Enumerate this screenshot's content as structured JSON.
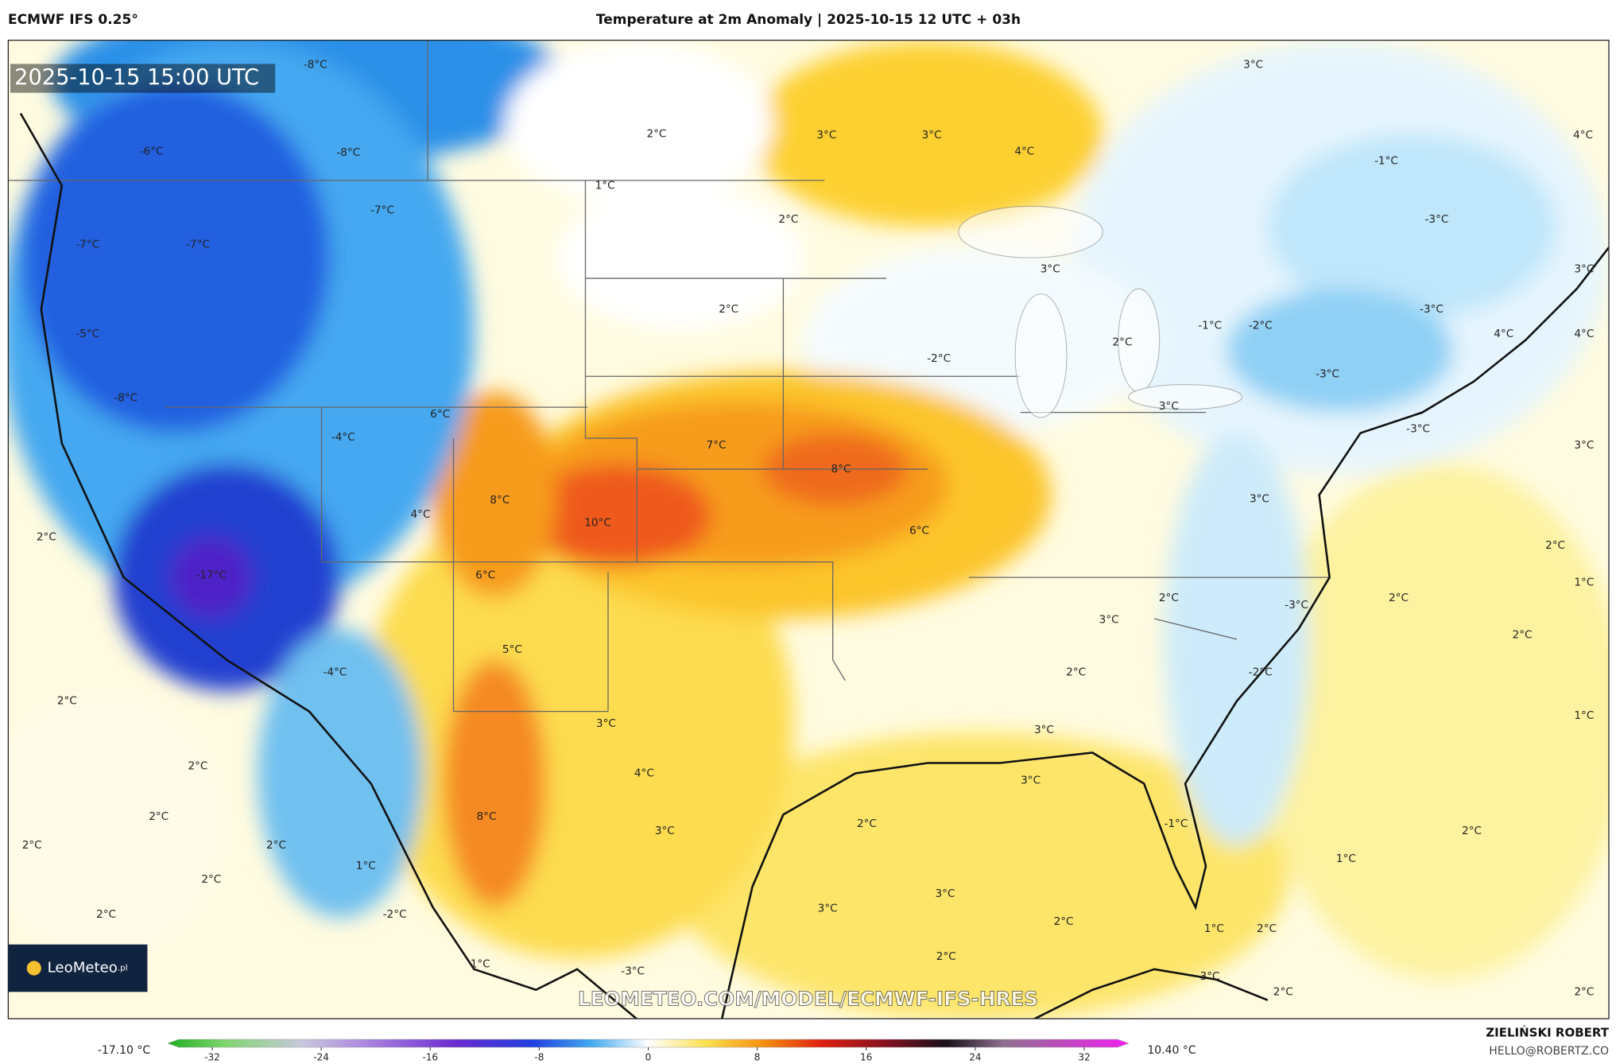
{
  "header": {
    "model": "ECMWF IFS 0.25°",
    "title": "Temperature at 2m Anomaly | 2025-10-15 12 UTC + 03h"
  },
  "map": {
    "timestamp": "2025-10-15 15:00 UTC",
    "watermark": "LEOMETEO.COM/MODEL/ECMWF-IFS-HRES",
    "labels": [
      "-8°C",
      "-6°C",
      "-8°C",
      "2°C",
      "3°C",
      "3°C",
      "4°C",
      "3°C",
      "4°C",
      "-1°C",
      "1°C",
      "-7°C",
      "2°C",
      "-3°C",
      "-7°C",
      "-7°C",
      "3°C",
      "3°C",
      "2°C",
      "-3°C",
      "-5°C",
      "-1°C",
      "-2°C",
      "4°C",
      "4°C",
      "2°C",
      "-2°C",
      "-3°C",
      "-8°C",
      "3°C",
      "6°C",
      "-3°C",
      "-4°C",
      "7°C",
      "3°C",
      "8°C",
      "8°C",
      "3°C",
      "4°C",
      "10°C",
      "6°C",
      "2°C",
      "2°C",
      "-17°C",
      "6°C",
      "1°C",
      "2°C",
      "2°C",
      "-3°C",
      "3°C",
      "2°C",
      "5°C",
      "-4°C",
      "2°C",
      "-2°C",
      "2°C",
      "1°C",
      "3°C",
      "3°C",
      "2°C",
      "4°C",
      "3°C",
      "2°C",
      "8°C",
      "2°C",
      "-1°C",
      "3°C",
      "2°C",
      "2°C",
      "2°C",
      "1°C",
      "1°C",
      "2°C",
      "3°C",
      "3°C",
      "-2°C",
      "2°C",
      "2°C",
      "1°C",
      "2°C",
      "2°C",
      "1°C",
      "-3°C",
      "-3°C",
      "2°C",
      "2°C"
    ]
  },
  "logo": {
    "name": "LeoMeteo",
    "suffix": ".pl"
  },
  "colorbar": {
    "min_label": "-17.10 °C",
    "max_label": "10.40 °C",
    "ticks": [
      -32,
      -24,
      -16,
      -8,
      0,
      8,
      16,
      24,
      32
    ]
  },
  "footer": {
    "author": "ZIELIŃSKI ROBERT",
    "email": "HELLO@ROBERTZ.CO"
  }
}
